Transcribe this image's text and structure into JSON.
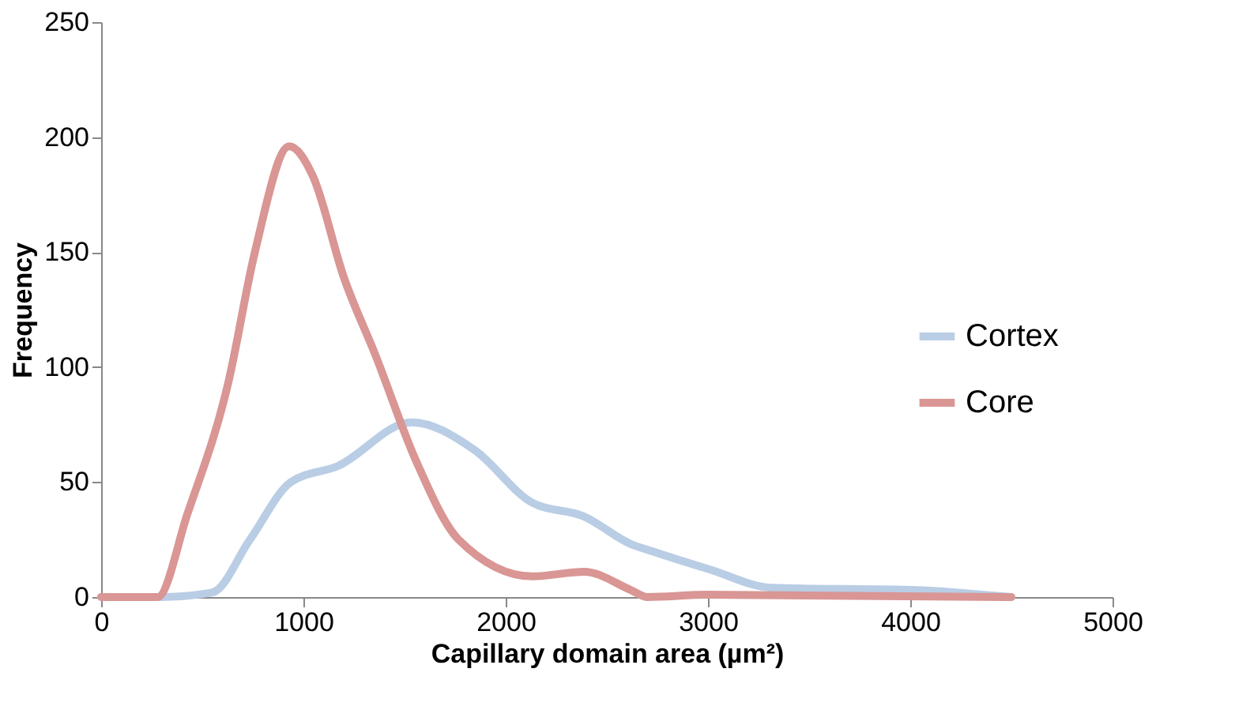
{
  "chart_data": {
    "type": "line",
    "xlabel": "Capillary  domain area (µm²)",
    "ylabel": "Frequency",
    "xlim": [
      0,
      5000
    ],
    "xticks": [
      0,
      1000,
      2000,
      3000,
      4000,
      5000
    ],
    "ylim": [
      0,
      250
    ],
    "yticks": [
      0,
      50,
      100,
      150,
      200,
      250
    ],
    "grid": false,
    "legend": "right",
    "marker": "none",
    "line_style": "solid",
    "series": [
      {
        "name": "Cortex",
        "color": "#b9cde5",
        "x": [
          0,
          300,
          550,
          736,
          938,
          1171,
          1535,
          1845,
          2132,
          2388,
          2620,
          2721,
          3008,
          3318,
          4039,
          4426,
          4500
        ],
        "values": [
          0,
          0,
          2,
          25,
          50,
          57,
          76,
          64,
          41,
          35,
          23,
          20,
          12,
          4,
          3,
          0.5,
          0
        ]
      },
      {
        "name": "Core",
        "color": "#d99694",
        "x": [
          0,
          279,
          426,
          628,
          760,
          930,
          1047,
          1200,
          1357,
          1558,
          1767,
          2132,
          2388,
          2620,
          2700,
          3000,
          4500
        ],
        "values": [
          0,
          0,
          36,
          93,
          150,
          196,
          183,
          139,
          105,
          59,
          25,
          9,
          11,
          3,
          0,
          1,
          0
        ]
      }
    ]
  }
}
